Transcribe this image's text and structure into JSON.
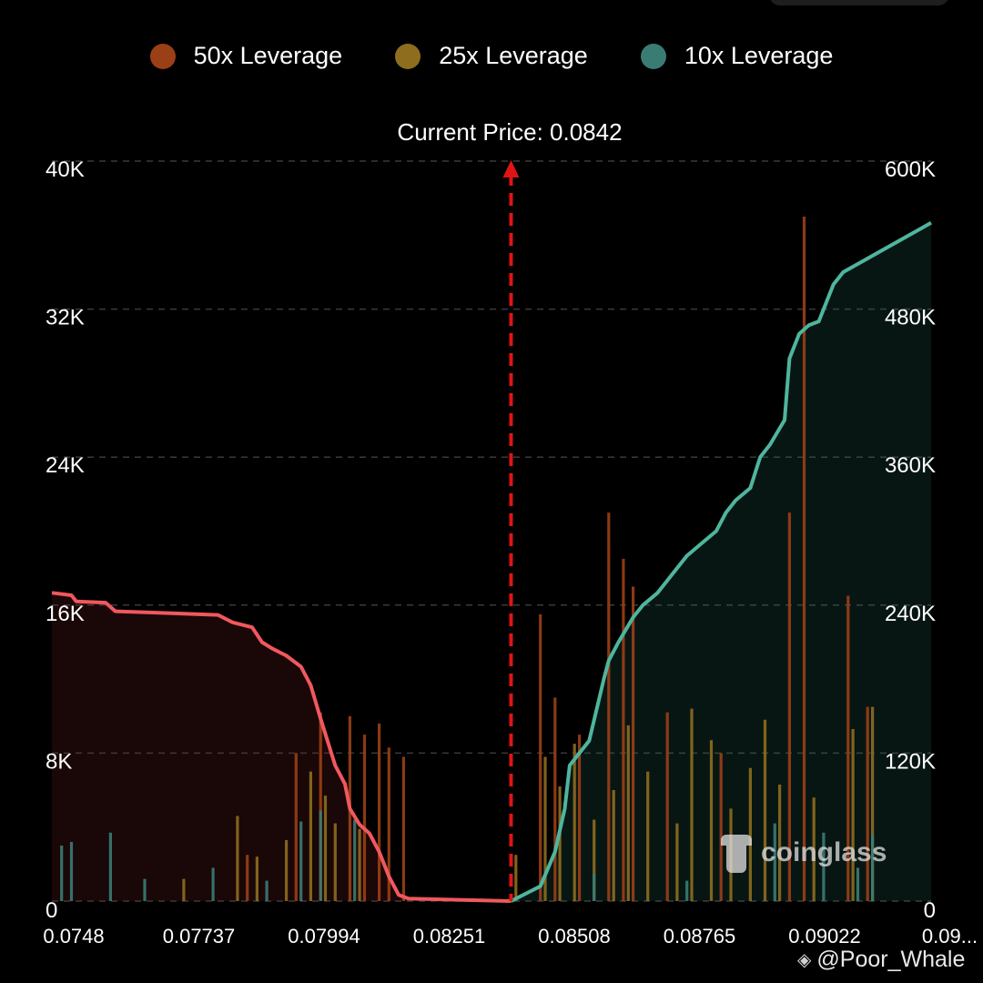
{
  "chart_data": {
    "type": "bar",
    "title": "Current Price: 0.0842",
    "current_price": 0.0842,
    "series": [
      {
        "name": "50x Leverage",
        "color": "#9b3f17"
      },
      {
        "name": "25x Leverage",
        "color": "#8e6d1f"
      },
      {
        "name": "10x Leverage",
        "color": "#3a7c74"
      }
    ],
    "x_tick_labels": [
      "0.0748",
      "0.07737",
      "0.07994",
      "0.08251",
      "0.08508",
      "0.08765",
      "0.09022",
      "0.09..."
    ],
    "x_range": [
      0.0748,
      0.0928
    ],
    "y_left": {
      "ticks": [
        "40K",
        "32K",
        "24K",
        "16K",
        "8K",
        "0"
      ],
      "range": [
        0,
        40000
      ]
    },
    "y_right": {
      "ticks": [
        "600K",
        "480K",
        "360K",
        "240K",
        "120K",
        "0"
      ],
      "range": [
        0,
        600000
      ]
    },
    "grid": true,
    "legend_position": "top",
    "cumulative_short": {
      "name": "cumulative-short-liquidations",
      "color": "#f0585e",
      "points": [
        [
          0.0748,
          250000
        ],
        [
          0.0752,
          248000
        ],
        [
          0.0753,
          243000
        ],
        [
          0.0759,
          242000
        ],
        [
          0.0761,
          235000
        ],
        [
          0.0768,
          234000
        ],
        [
          0.0775,
          233000
        ],
        [
          0.0782,
          232000
        ],
        [
          0.0785,
          226000
        ],
        [
          0.0789,
          222000
        ],
        [
          0.0791,
          210000
        ],
        [
          0.0793,
          205000
        ],
        [
          0.0796,
          199000
        ],
        [
          0.0799,
          190000
        ],
        [
          0.0801,
          175000
        ],
        [
          0.0803,
          148000
        ],
        [
          0.0806,
          110000
        ],
        [
          0.0808,
          95000
        ],
        [
          0.0809,
          75000
        ],
        [
          0.0811,
          62000
        ],
        [
          0.0813,
          55000
        ],
        [
          0.0815,
          40000
        ],
        [
          0.0817,
          20000
        ],
        [
          0.0819,
          5000
        ],
        [
          0.0821,
          2000
        ],
        [
          0.0842,
          0
        ]
      ]
    },
    "cumulative_long": {
      "name": "cumulative-long-liquidations",
      "color": "#4fb59e",
      "points": [
        [
          0.0842,
          0
        ],
        [
          0.0848,
          12000
        ],
        [
          0.0851,
          40000
        ],
        [
          0.0853,
          75000
        ],
        [
          0.0854,
          110000
        ],
        [
          0.0856,
          120000
        ],
        [
          0.0858,
          130000
        ],
        [
          0.0861,
          180000
        ],
        [
          0.0862,
          195000
        ],
        [
          0.0864,
          210000
        ],
        [
          0.0867,
          230000
        ],
        [
          0.0869,
          240000
        ],
        [
          0.0872,
          250000
        ],
        [
          0.0875,
          265000
        ],
        [
          0.0878,
          280000
        ],
        [
          0.0881,
          290000
        ],
        [
          0.0884,
          300000
        ],
        [
          0.0886,
          315000
        ],
        [
          0.0888,
          325000
        ],
        [
          0.0891,
          335000
        ],
        [
          0.0893,
          360000
        ],
        [
          0.0895,
          370000
        ],
        [
          0.0898,
          390000
        ],
        [
          0.0899,
          440000
        ],
        [
          0.0901,
          460000
        ],
        [
          0.0903,
          467000
        ],
        [
          0.0905,
          470000
        ],
        [
          0.0906,
          480000
        ],
        [
          0.0908,
          500000
        ],
        [
          0.091,
          510000
        ],
        [
          0.0928,
          550000
        ]
      ]
    },
    "bars_note_series": {
      "50x Leverage": [
        [
          0.0788,
          2500
        ],
        [
          0.0798,
          8000
        ],
        [
          0.0803,
          10200
        ],
        [
          0.0809,
          10000
        ],
        [
          0.0812,
          9000
        ],
        [
          0.0815,
          9600
        ],
        [
          0.0817,
          8300
        ],
        [
          0.082,
          7800
        ],
        [
          0.0848,
          15500
        ],
        [
          0.0851,
          11000
        ],
        [
          0.0856,
          9000
        ],
        [
          0.0862,
          21000
        ],
        [
          0.0865,
          18500
        ],
        [
          0.0867,
          17000
        ],
        [
          0.0874,
          10200
        ],
        [
          0.0885,
          8000
        ],
        [
          0.0902,
          37000
        ],
        [
          0.0899,
          21000
        ],
        [
          0.0911,
          16500
        ],
        [
          0.0915,
          10500
        ]
      ],
      "25x Leverage": [
        [
          0.0775,
          1200
        ],
        [
          0.0786,
          4600
        ],
        [
          0.079,
          2400
        ],
        [
          0.0796,
          3300
        ],
        [
          0.0801,
          7000
        ],
        [
          0.0804,
          5700
        ],
        [
          0.0806,
          4200
        ],
        [
          0.0811,
          3900
        ],
        [
          0.0843,
          2500
        ],
        [
          0.0849,
          7800
        ],
        [
          0.0852,
          6200
        ],
        [
          0.0855,
          8500
        ],
        [
          0.0859,
          4400
        ],
        [
          0.0863,
          6000
        ],
        [
          0.0866,
          9500
        ],
        [
          0.087,
          7000
        ],
        [
          0.0876,
          4200
        ],
        [
          0.0879,
          10400
        ],
        [
          0.0883,
          8700
        ],
        [
          0.0887,
          5000
        ],
        [
          0.0891,
          7200
        ],
        [
          0.0894,
          9800
        ],
        [
          0.0897,
          6300
        ],
        [
          0.0904,
          5600
        ],
        [
          0.0912,
          9300
        ],
        [
          0.0916,
          10500
        ]
      ],
      "10x Leverage": [
        [
          0.075,
          3000
        ],
        [
          0.0752,
          3200
        ],
        [
          0.076,
          3700
        ],
        [
          0.0767,
          1200
        ],
        [
          0.0781,
          1800
        ],
        [
          0.0792,
          1100
        ],
        [
          0.0799,
          4300
        ],
        [
          0.0803,
          4900
        ],
        [
          0.081,
          4400
        ],
        [
          0.0859,
          1500
        ],
        [
          0.0878,
          1100
        ],
        [
          0.0896,
          4200
        ],
        [
          0.0906,
          3700
        ],
        [
          0.0913,
          1800
        ],
        [
          0.0916,
          3600
        ]
      ]
    }
  },
  "watermark": {
    "brand": "coinglass",
    "handle": "@Poor_Whale"
  }
}
